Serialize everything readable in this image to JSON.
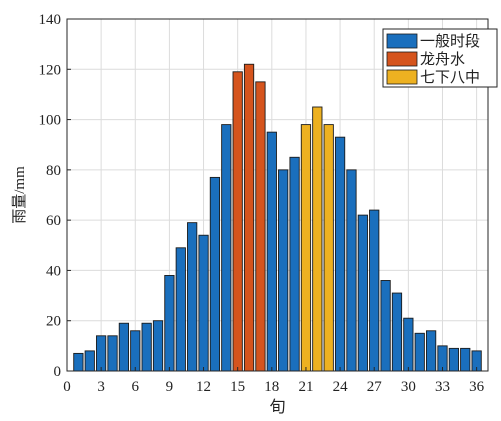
{
  "chart_data": {
    "type": "bar",
    "xlabel": "旬",
    "ylabel": "雨量/mm",
    "ylim": [
      0,
      140
    ],
    "xlim": [
      0,
      37
    ],
    "x_ticks": [
      0,
      3,
      6,
      9,
      12,
      15,
      18,
      21,
      24,
      27,
      30,
      33,
      36
    ],
    "y_ticks": [
      0,
      20,
      40,
      60,
      80,
      100,
      120,
      140
    ],
    "grid": true,
    "legend_position": "top-right",
    "x": [
      1,
      2,
      3,
      4,
      5,
      6,
      7,
      8,
      9,
      10,
      11,
      12,
      13,
      14,
      15,
      16,
      17,
      18,
      19,
      20,
      21,
      22,
      23,
      24,
      25,
      26,
      27,
      28,
      29,
      30,
      31,
      32,
      33,
      34,
      35,
      36
    ],
    "values": [
      7,
      8,
      14,
      14,
      19,
      16,
      19,
      20,
      38,
      49,
      59,
      54,
      77,
      98,
      119,
      122,
      115,
      95,
      80,
      85,
      98,
      105,
      98,
      93,
      80,
      62,
      64,
      36,
      31,
      21,
      15,
      16,
      10,
      9,
      9,
      8
    ],
    "series": [
      {
        "name": "一般时段",
        "color": "#1a6fbd",
        "x": [
          1,
          2,
          3,
          4,
          5,
          6,
          7,
          8,
          9,
          10,
          11,
          12,
          13,
          14,
          18,
          19,
          20,
          24,
          25,
          26,
          27,
          28,
          29,
          30,
          31,
          32,
          33,
          34,
          35,
          36
        ]
      },
      {
        "name": "龙舟水",
        "color": "#d5541d",
        "x": [
          15,
          16,
          17
        ]
      },
      {
        "name": "七下八中",
        "color": "#edb121",
        "x": [
          21,
          22,
          23
        ]
      }
    ]
  }
}
